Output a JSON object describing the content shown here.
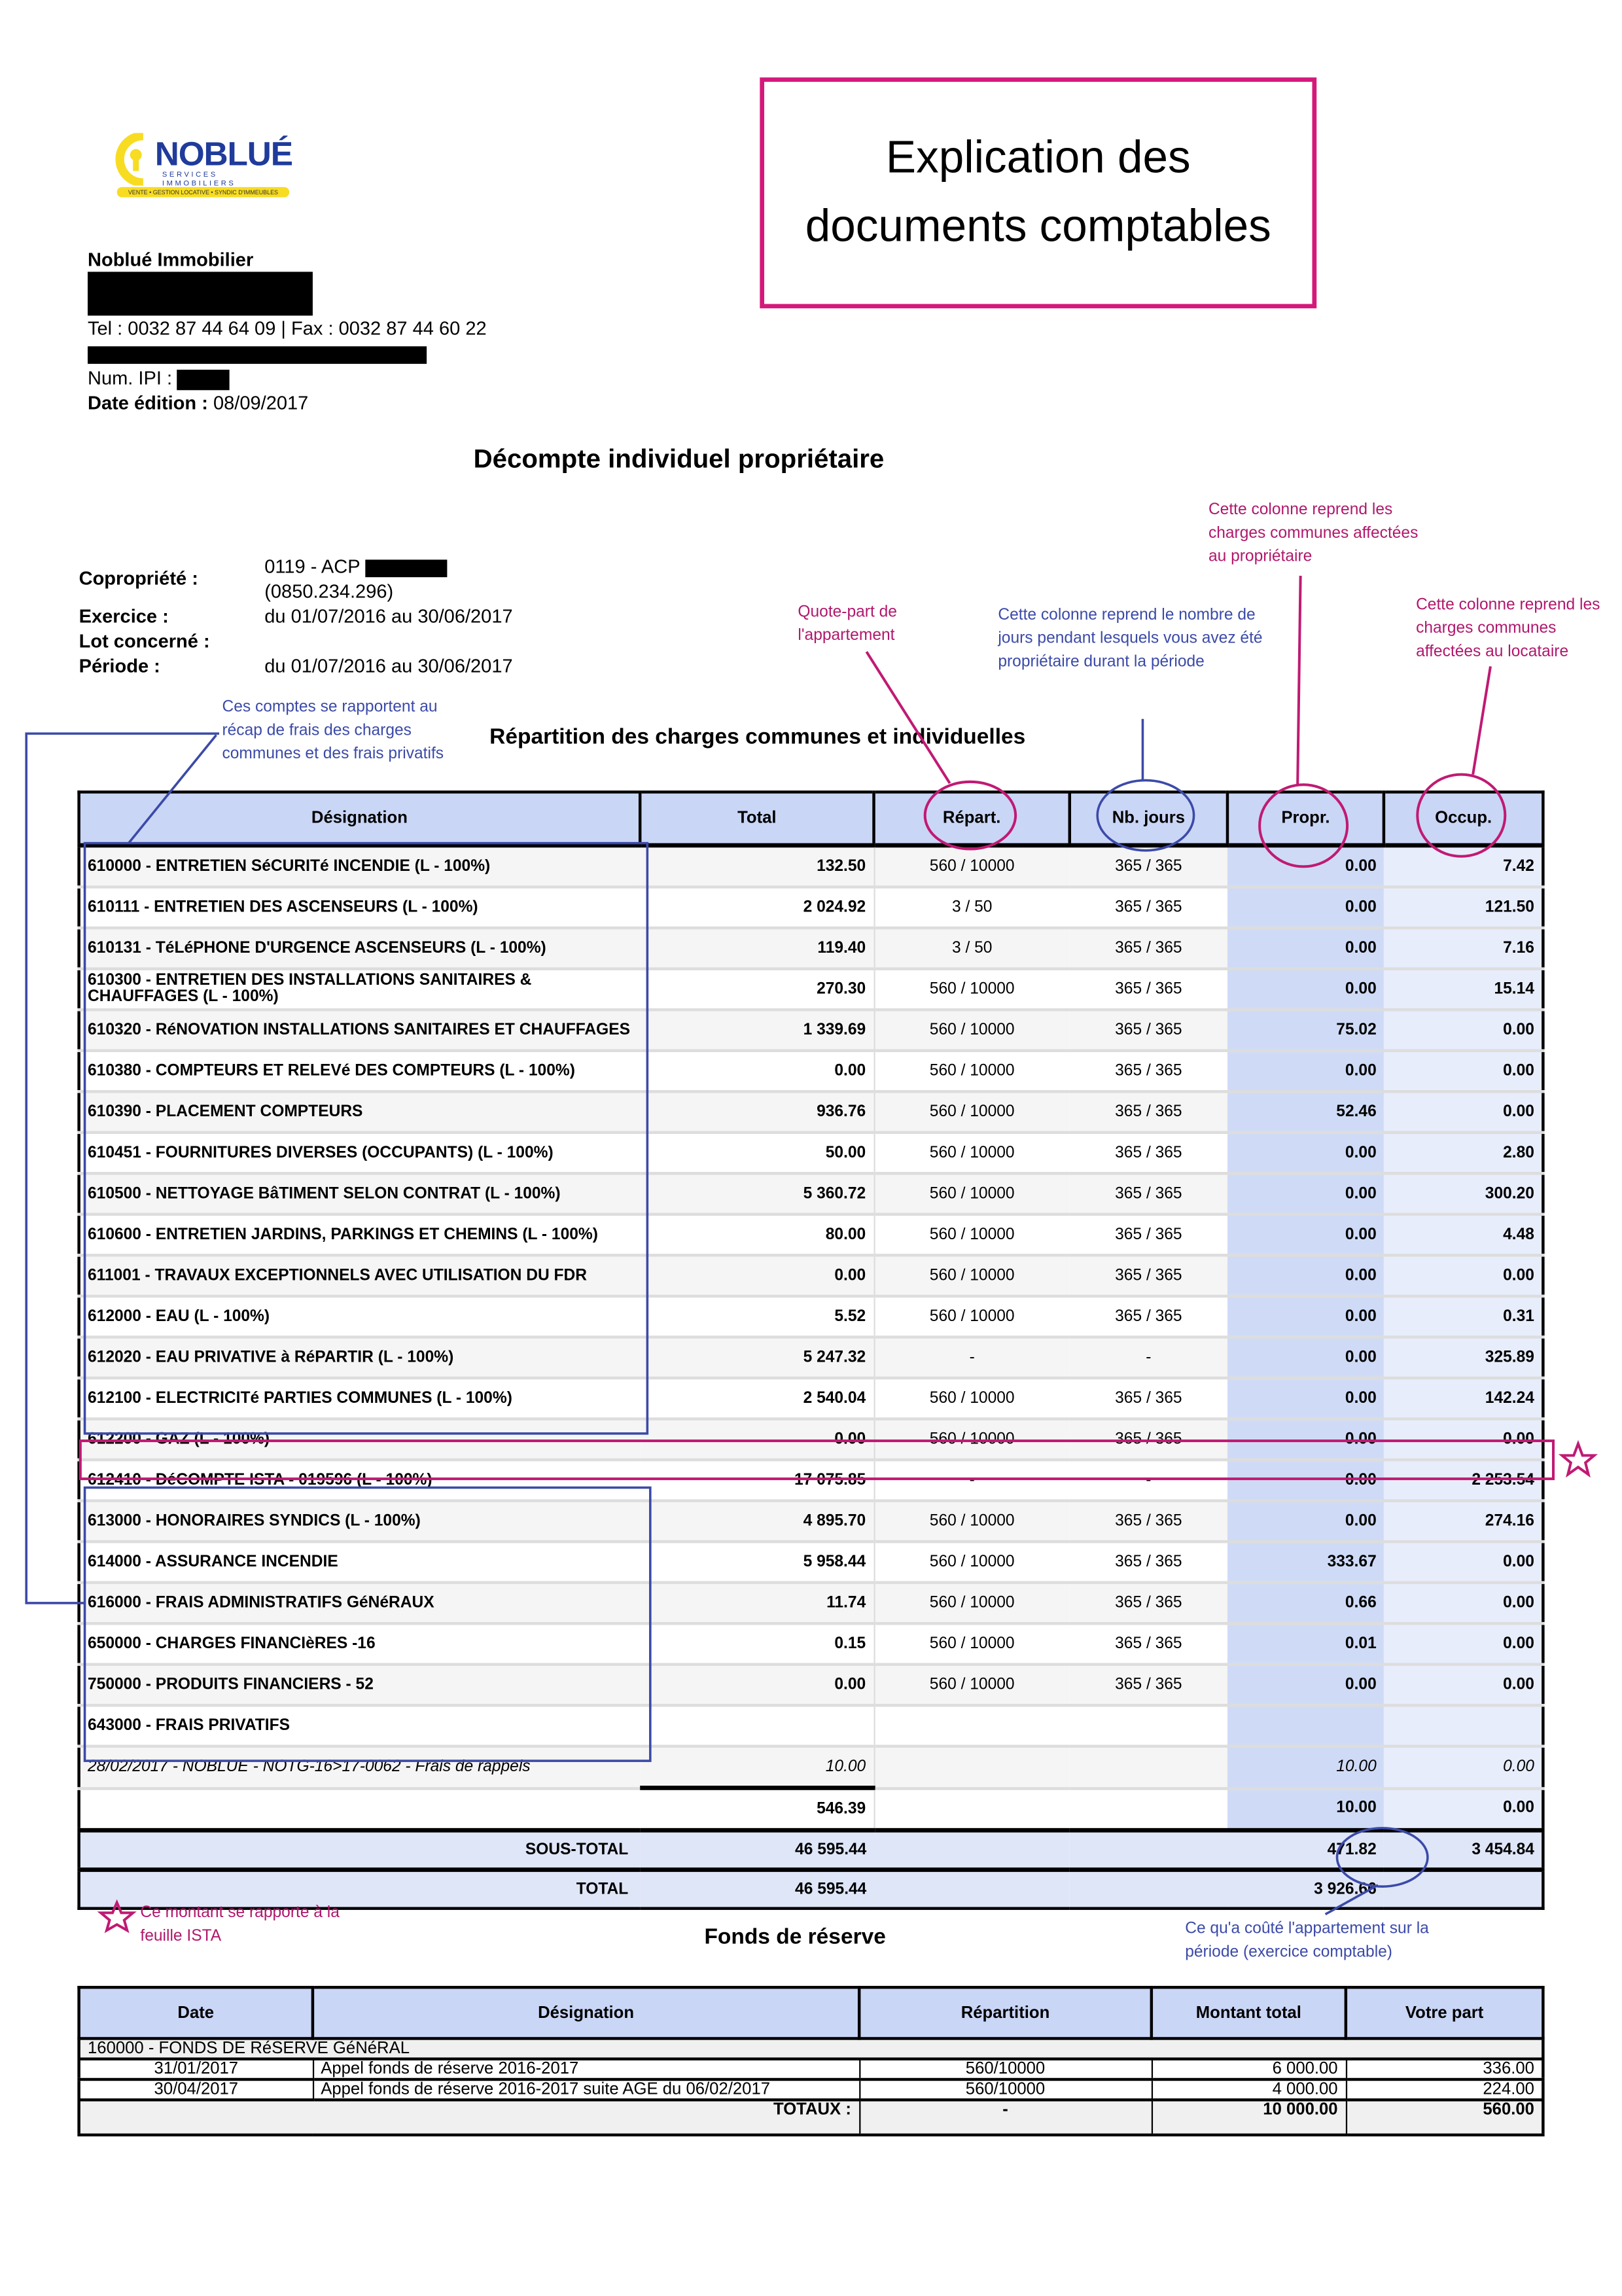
{
  "logo": {
    "name": "NOBLUÉ",
    "subtitle": "SERVICES IMMOBILIERS",
    "tagline": "VENTE • GESTION LOCATIVE • SYNDIC D'IMMEUBLES"
  },
  "company": {
    "name": "Noblué Immobilier",
    "phone_fax": "Tel : 0032 87 44 64 09 | Fax : 0032 87 44 60 22",
    "ipi_label": "Num. IPI :",
    "date_label": "Date édition :",
    "date_value": "08/09/2017"
  },
  "explanation_box": {
    "line1": "Explication des",
    "line2": "documents comptables"
  },
  "doc_title": "Décompte individuel propriétaire",
  "meta": {
    "copro_label": "Copropriété :",
    "copro_value": "0119 - ACP",
    "copro_number": "(0850.234.296)",
    "exercice_label": "Exercice :",
    "exercice_value": "du 01/07/2016 au 30/06/2017",
    "lot_label": "Lot concerné :",
    "periode_label": "Période :",
    "periode_value": "du 01/07/2016 au 30/06/2017"
  },
  "annotations": {
    "accounts": "Ces comptes se rapportent au récap de frais des charges communes et des frais privatifs",
    "quote_part": "Quote-part de l'appartement",
    "nb_jours": "Cette colonne reprend le nombre de jours pendant lesquels vous avez été propriétaire durant la période",
    "propr": "Cette colonne reprend les charges communes affectées au propriétaire",
    "occup": "Cette colonne reprend les charges communes affectées au locataire",
    "ista": "Ce montant se rapporte à la feuille ISTA",
    "total_cost": "Ce qu'a coûté l'appartement sur la période (exercice comptable)"
  },
  "section_title": "Répartition des charges communes et individuelles",
  "main_table": {
    "headers": [
      "Désignation",
      "Total",
      "Répart.",
      "Nb. jours",
      "Propr.",
      "Occup."
    ],
    "rows": [
      [
        "610000 - ENTRETIEN SéCURITé INCENDIE (L - 100%)",
        "132.50",
        "560 / 10000",
        "365 / 365",
        "0.00",
        "7.42"
      ],
      [
        "610111 - ENTRETIEN DES ASCENSEURS (L - 100%)",
        "2 024.92",
        "3 / 50",
        "365 / 365",
        "0.00",
        "121.50"
      ],
      [
        "610131 - TéLéPHONE D'URGENCE ASCENSEURS (L - 100%)",
        "119.40",
        "3 / 50",
        "365 / 365",
        "0.00",
        "7.16"
      ],
      [
        "610300 - ENTRETIEN DES INSTALLATIONS SANITAIRES & CHAUFFAGES (L - 100%)",
        "270.30",
        "560 / 10000",
        "365 / 365",
        "0.00",
        "15.14"
      ],
      [
        "610320 - RéNOVATION INSTALLATIONS SANITAIRES ET CHAUFFAGES",
        "1 339.69",
        "560 / 10000",
        "365 / 365",
        "75.02",
        "0.00"
      ],
      [
        "610380 - COMPTEURS ET RELEVé DES COMPTEURS (L - 100%)",
        "0.00",
        "560 / 10000",
        "365 / 365",
        "0.00",
        "0.00"
      ],
      [
        "610390 - PLACEMENT COMPTEURS",
        "936.76",
        "560 / 10000",
        "365 / 365",
        "52.46",
        "0.00"
      ],
      [
        "610451 - FOURNITURES DIVERSES (OCCUPANTS) (L - 100%)",
        "50.00",
        "560 / 10000",
        "365 / 365",
        "0.00",
        "2.80"
      ],
      [
        "610500 - NETTOYAGE BâTIMENT SELON CONTRAT (L - 100%)",
        "5 360.72",
        "560 / 10000",
        "365 / 365",
        "0.00",
        "300.20"
      ],
      [
        "610600 - ENTRETIEN JARDINS, PARKINGS ET CHEMINS (L - 100%)",
        "80.00",
        "560 / 10000",
        "365 / 365",
        "0.00",
        "4.48"
      ],
      [
        "611001 - TRAVAUX EXCEPTIONNELS AVEC UTILISATION DU FDR",
        "0.00",
        "560 / 10000",
        "365 / 365",
        "0.00",
        "0.00"
      ],
      [
        "612000 - EAU (L - 100%)",
        "5.52",
        "560 / 10000",
        "365 / 365",
        "0.00",
        "0.31"
      ],
      [
        "612020 - EAU PRIVATIVE à RéPARTIR (L - 100%)",
        "5 247.32",
        "-",
        "-",
        "0.00",
        "325.89"
      ],
      [
        "612100 - ELECTRICITé PARTIES COMMUNES (L - 100%)",
        "2 540.04",
        "560 / 10000",
        "365 / 365",
        "0.00",
        "142.24"
      ],
      [
        "612200 - GAZ (L - 100%)",
        "0.00",
        "560 / 10000",
        "365 / 365",
        "0.00",
        "0.00"
      ],
      [
        "612410 - DéCOMPTE ISTA - 019596 (L - 100%)",
        "17 075.85",
        "-",
        "-",
        "0.00",
        "2 253.54"
      ],
      [
        "613000 - HONORAIRES SYNDICS (L - 100%)",
        "4 895.70",
        "560 / 10000",
        "365 / 365",
        "0.00",
        "274.16"
      ],
      [
        "614000 - ASSURANCE INCENDIE",
        "5 958.44",
        "560 / 10000",
        "365 / 365",
        "333.67",
        "0.00"
      ],
      [
        "616000 - FRAIS ADMINISTRATIFS GéNéRAUX",
        "11.74",
        "560 / 10000",
        "365 / 365",
        "0.66",
        "0.00"
      ],
      [
        "650000 - CHARGES FINANCIèRES -16",
        "0.15",
        "560 / 10000",
        "365 / 365",
        "0.01",
        "0.00"
      ],
      [
        "750000 - PRODUITS FINANCIERS - 52",
        "0.00",
        "560 / 10000",
        "365 / 365",
        "0.00",
        "0.00"
      ]
    ],
    "privatifs": {
      "label": "643000 - FRAIS PRIVATIFS",
      "detail": [
        "28/02/2017 - NOBLUE - NOTG-16>17-0062 - Frais de rappels",
        "10.00",
        "",
        "",
        "10.00",
        "0.00"
      ],
      "subtotal": [
        "",
        "546.39",
        "",
        "",
        "10.00",
        "0.00"
      ]
    },
    "sous_total": {
      "label": "SOUS-TOTAL",
      "total": "46 595.44",
      "propr": "471.82",
      "occup": "3 454.84"
    },
    "total": {
      "label": "TOTAL",
      "total": "46 595.44",
      "value": "3 926.66"
    }
  },
  "fonds": {
    "title": "Fonds de réserve",
    "headers": [
      "Date",
      "Désignation",
      "Répartition",
      "Montant total",
      "Votre part"
    ],
    "group": "160000 - FONDS DE RéSERVE GéNéRAL",
    "rows": [
      [
        "31/01/2017",
        "Appel fonds de réserve 2016-2017",
        "560/10000",
        "6 000.00",
        "336.00"
      ],
      [
        "30/04/2017",
        "Appel fonds de réserve 2016-2017 suite AGE du 06/02/2017",
        "560/10000",
        "4 000.00",
        "224.00"
      ]
    ],
    "totals": {
      "label": "TOTAUX :",
      "repart": "-",
      "montant": "10 000.00",
      "part": "560.00"
    }
  },
  "colors": {
    "accent_pink": "#d4197a",
    "annotation_blue": "#3b4aa8",
    "header_bg": "#cad6f6"
  }
}
